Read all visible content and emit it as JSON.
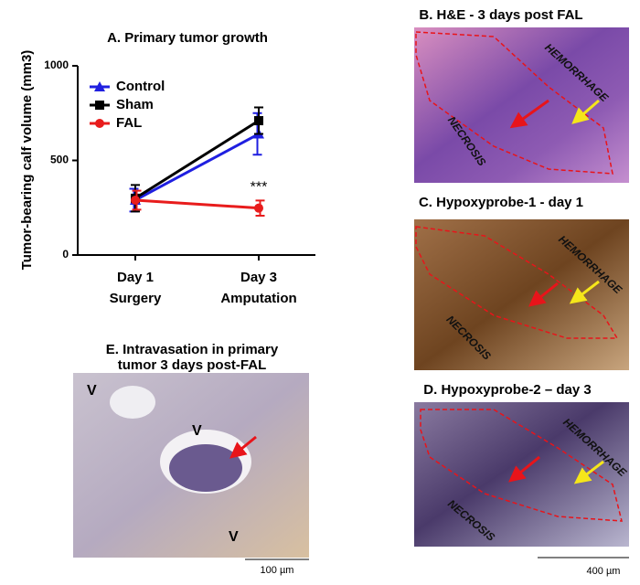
{
  "chart_data": {
    "type": "line",
    "title": "A. Primary tumor growth",
    "y_label": "Tumor-bearing calf  volume (mm3)",
    "categories": [
      "Day 1",
      "Day 3"
    ],
    "category_sublabels": [
      "Surgery",
      "Amputation"
    ],
    "series": [
      {
        "name": "Control",
        "color": "#1f1fe0",
        "marker": "triangle",
        "values": [
          290,
          640
        ],
        "errors": [
          60,
          110
        ]
      },
      {
        "name": "Sham",
        "color": "#000000",
        "marker": "square",
        "values": [
          300,
          710
        ],
        "errors": [
          70,
          70
        ]
      },
      {
        "name": "FAL",
        "color": "#e81c1c",
        "marker": "circle",
        "values": [
          290,
          248
        ],
        "errors": [
          50,
          40
        ]
      }
    ],
    "annotation": "***",
    "ylim": [
      0,
      1000
    ],
    "yticks": [
      0,
      500,
      1000
    ],
    "legend": "upper-left"
  },
  "panels": [
    {
      "title": "B. H&E - 3 days post FAL",
      "labels": [
        "HEMORRHAGE",
        "NECROSIS"
      ]
    },
    {
      "title": "C. Hypoxyprobe-1 - day 1",
      "labels": [
        "HEMORRHAGE",
        "NECROSIS"
      ]
    },
    {
      "title": "D. Hypoxyprobe-2 – day 3",
      "labels": [
        "HEMORRHAGE",
        "NECROSIS"
      ]
    },
    {
      "title_lines": [
        "E. Intravasation in primary",
        "tumor 3 days post-FAL"
      ],
      "labels": [
        "V",
        "V",
        "V"
      ]
    }
  ],
  "scale_bars": [
    "100 µm",
    "400 µm"
  ]
}
